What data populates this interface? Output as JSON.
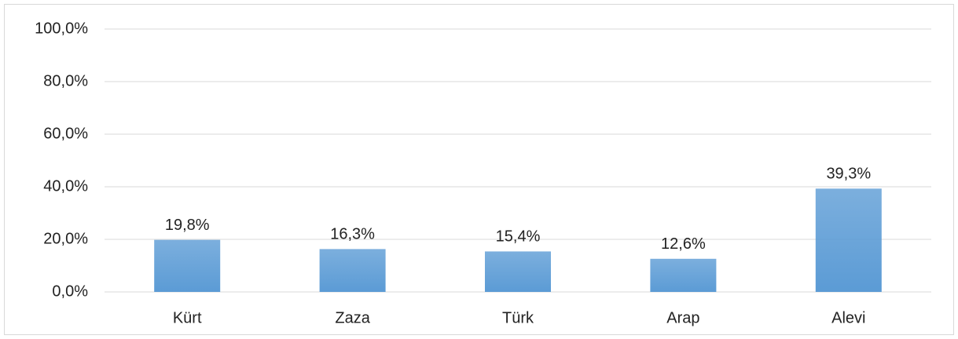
{
  "chart_data": {
    "type": "bar",
    "categories": [
      "Kürt",
      "Zaza",
      "Türk",
      "Arap",
      "Alevi"
    ],
    "values": [
      19.8,
      16.3,
      15.4,
      12.6,
      39.3
    ],
    "value_labels": [
      "19,8%",
      "16,3%",
      "15,4%",
      "12,6%",
      "39,3%"
    ],
    "color": "#5b9bd5",
    "ylim": [
      0,
      100
    ],
    "yticks": [
      {
        "value": 0,
        "label": "0,0%"
      },
      {
        "value": 20,
        "label": "20,0%"
      },
      {
        "value": 40,
        "label": "40,0%"
      },
      {
        "value": 60,
        "label": "60,0%"
      },
      {
        "value": 80,
        "label": "80,0%"
      },
      {
        "value": 100,
        "label": "100,0%"
      }
    ],
    "grid": true
  }
}
